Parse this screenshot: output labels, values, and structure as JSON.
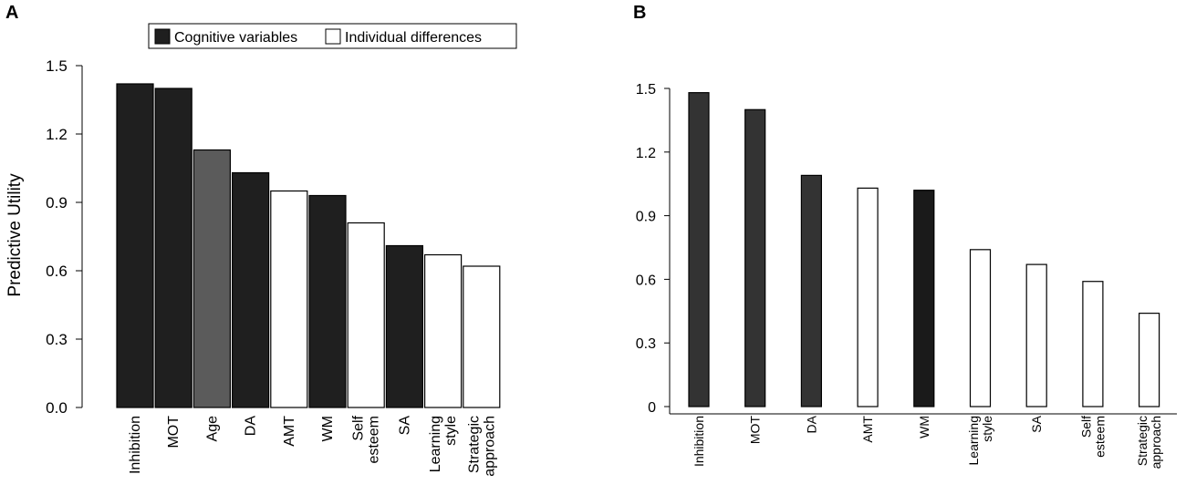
{
  "colors": {
    "cognitive": "#1f1f1f",
    "individual": "#ffffff",
    "age": "#5b5b5b",
    "cognitive_b": "#333333",
    "wm_b": "#1a1a1a"
  },
  "chart_data": [
    {
      "panel": "A",
      "type": "bar",
      "ylabel": "Predictive Utility",
      "ylim": [
        0,
        1.5
      ],
      "yticks": [
        "0.0",
        "0.3",
        "0.6",
        "0.9",
        "1.2",
        "1.5"
      ],
      "ytick_values": [
        0,
        0.3,
        0.6,
        0.9,
        1.2,
        1.5
      ],
      "legend": [
        {
          "label": "Cognitive variables",
          "color": "#1f1f1f"
        },
        {
          "label": "Individual differences",
          "color": "#ffffff"
        }
      ],
      "categories": [
        [
          "Inhibition"
        ],
        [
          "MOT"
        ],
        [
          "Age"
        ],
        [
          "DA"
        ],
        [
          "AMT"
        ],
        [
          "WM"
        ],
        [
          "Self",
          "esteem"
        ],
        [
          "SA"
        ],
        [
          "Learning",
          "style"
        ],
        [
          "Strategic",
          "approach"
        ]
      ],
      "values": [
        1.42,
        1.4,
        1.13,
        1.03,
        0.95,
        0.93,
        0.81,
        0.71,
        0.67,
        0.62
      ],
      "groups": [
        "cognitive",
        "cognitive",
        "age",
        "cognitive",
        "individual",
        "cognitive",
        "individual",
        "cognitive",
        "individual",
        "individual"
      ]
    },
    {
      "panel": "B",
      "type": "bar",
      "ylabel": "",
      "ylim": [
        0,
        1.5
      ],
      "yticks": [
        "0",
        "0.3",
        "0.6",
        "0.9",
        "1.2",
        "1.5"
      ],
      "ytick_values": [
        0,
        0.3,
        0.6,
        0.9,
        1.2,
        1.5
      ],
      "categories": [
        [
          "Inhibition"
        ],
        [
          "MOT"
        ],
        [
          "DA"
        ],
        [
          "AMT"
        ],
        [
          "WM"
        ],
        [
          "Learning",
          "style"
        ],
        [
          "SA"
        ],
        [
          "Self",
          "esteem"
        ],
        [
          "Strategic",
          "approach"
        ]
      ],
      "values": [
        1.48,
        1.4,
        1.09,
        1.03,
        1.02,
        0.74,
        0.67,
        0.59,
        0.44
      ],
      "groups": [
        "cognitive_b",
        "cognitive_b",
        "cognitive_b",
        "individual",
        "wm_b",
        "individual",
        "individual",
        "individual",
        "individual"
      ]
    }
  ]
}
